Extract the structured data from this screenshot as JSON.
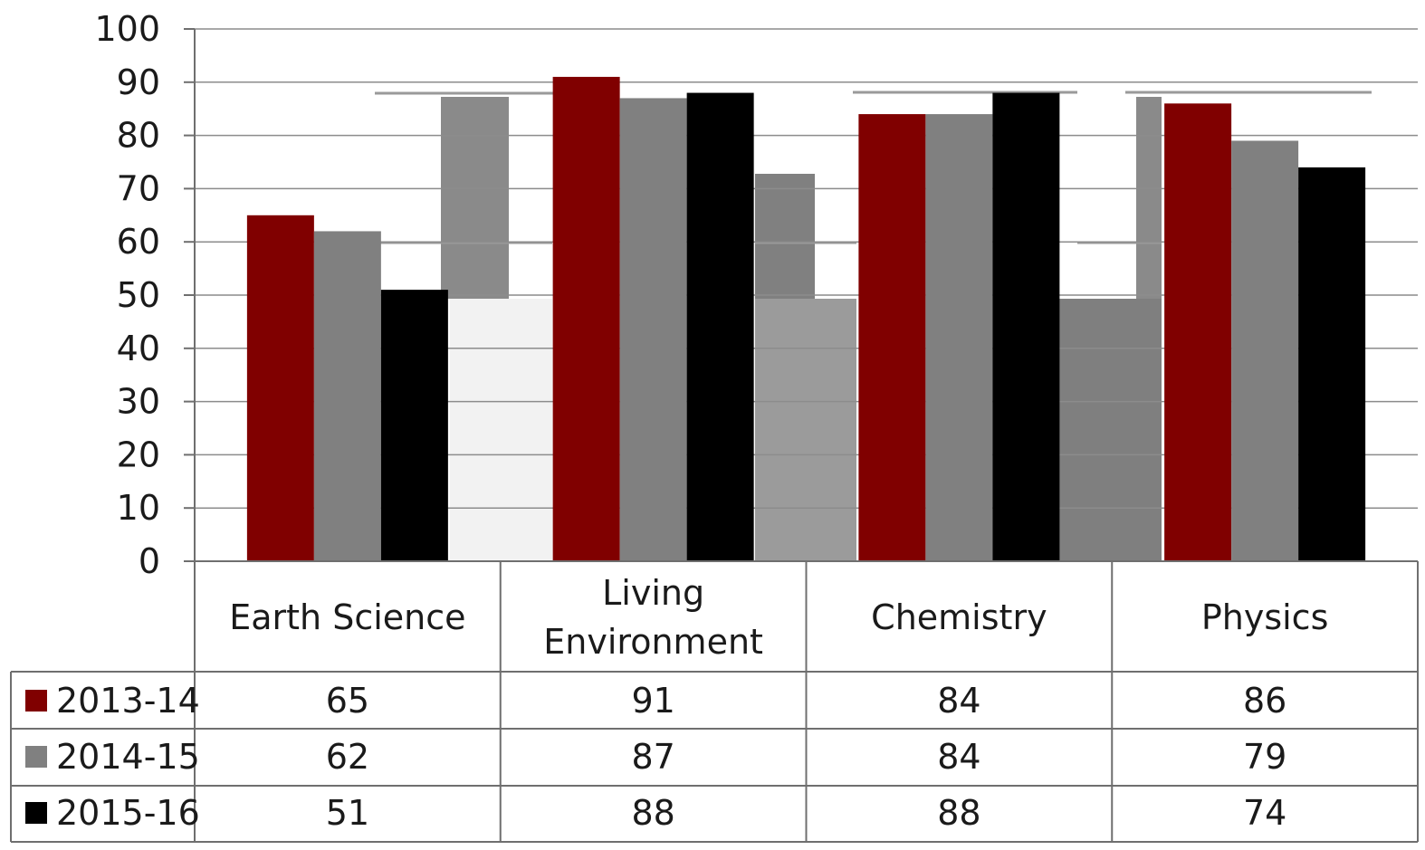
{
  "chart_data": {
    "type": "bar",
    "categories": [
      "Earth Science",
      "Living Environment",
      "Chemistry",
      "Physics"
    ],
    "category_lines": [
      [
        "Earth Science"
      ],
      [
        "Living",
        "Environment"
      ],
      [
        "Chemistry"
      ],
      [
        "Physics"
      ]
    ],
    "series": [
      {
        "name": "2013-14",
        "values": [
          65,
          91,
          84,
          86
        ],
        "color": "#800000"
      },
      {
        "name": "2014-15",
        "values": [
          62,
          87,
          84,
          79
        ],
        "color": "#808080"
      },
      {
        "name": "2015-16",
        "values": [
          51,
          88,
          88,
          74
        ],
        "color": "#000000"
      }
    ],
    "y_ticks": [
      "0",
      "10",
      "20",
      "30",
      "40",
      "50",
      "60",
      "70",
      "80",
      "90",
      "100"
    ],
    "ylim": [
      0,
      100
    ],
    "grid": true,
    "legend": "data-table"
  }
}
